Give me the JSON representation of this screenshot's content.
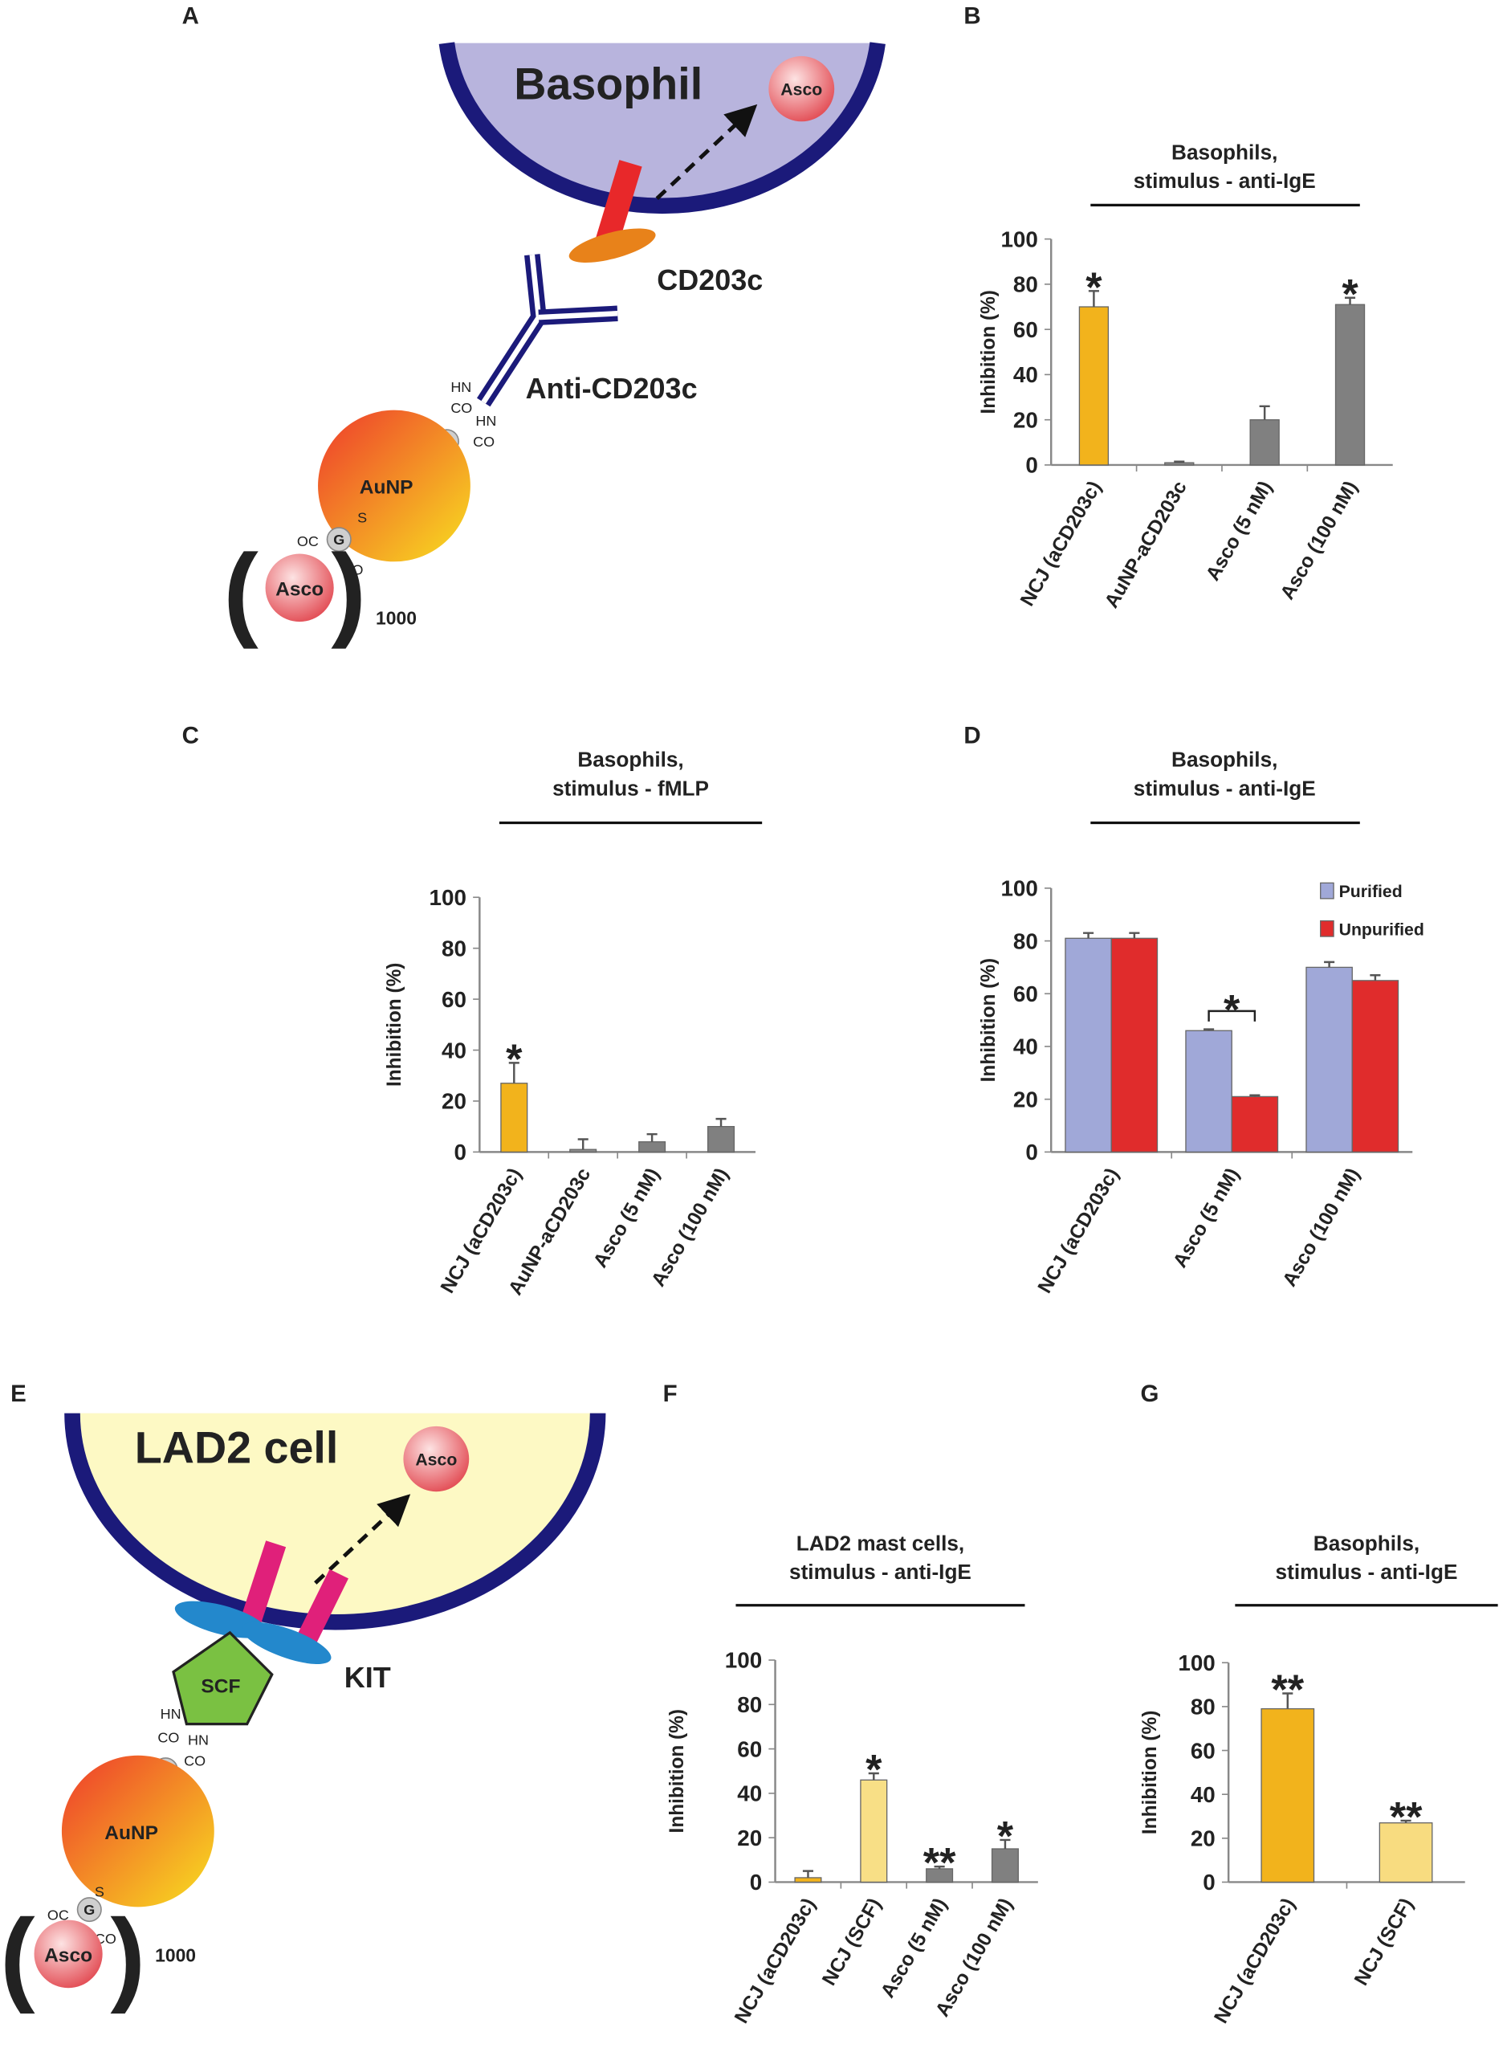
{
  "panels": {
    "a": "A",
    "e": "E"
  },
  "diagram_a": {
    "cell": "Basophil",
    "cargo": "Asco",
    "receptor": "CD203c",
    "ligand": "Anti-CD203c",
    "particle": "AuNP",
    "payload": "Asco",
    "count": "1000",
    "linker": "G",
    "chem_labels": [
      "HN",
      "CO",
      "HN",
      "CO",
      "S",
      "S",
      "OC",
      "CO"
    ]
  },
  "diagram_e": {
    "cell": "LAD2 cell",
    "cargo": "Asco",
    "receptor": "KIT",
    "ligand": "SCF",
    "particle": "AuNP",
    "payload": "Asco",
    "count": "1000",
    "linker": "G",
    "chem_labels": [
      "HN",
      "CO",
      "HN",
      "CO",
      "S",
      "S",
      "OC",
      "CO"
    ]
  },
  "chart_data": [
    {
      "type": "bar",
      "panel": "B",
      "title": "Basophils,",
      "subtitle": "stimulus - anti-IgE",
      "ylabel": "Inhibition (%)",
      "categories": [
        "NCJ (aCD203c)",
        "AuNP-aCD203c",
        "Asco (5 nM)",
        "Asco (100 nM)"
      ],
      "values": [
        70,
        1,
        20,
        71
      ],
      "errors": [
        7,
        0.5,
        6,
        3
      ],
      "colors": [
        "#f2b31c",
        "#8c8c8c",
        "#808080",
        "#808080"
      ],
      "annotations": [
        {
          "index": 0,
          "text": "*"
        },
        {
          "index": 3,
          "text": "*"
        }
      ],
      "ylim": [
        0,
        100
      ],
      "yticks": [
        0,
        20,
        40,
        60,
        80,
        100
      ]
    },
    {
      "type": "bar",
      "panel": "C",
      "title": "Basophils,",
      "subtitle": "stimulus - fMLP",
      "ylabel": "Inhibition (%)",
      "categories": [
        "NCJ (aCD203c)",
        "AuNP-aCD203c",
        "Asco (5 nM)",
        "Asco (100 nM)"
      ],
      "values": [
        27,
        1,
        4,
        10
      ],
      "errors": [
        8,
        4,
        3,
        3
      ],
      "colors": [
        "#f2b31c",
        "#8c8c8c",
        "#808080",
        "#808080"
      ],
      "annotations": [
        {
          "index": 0,
          "text": "*"
        }
      ],
      "ylim": [
        0,
        100
      ],
      "yticks": [
        0,
        20,
        40,
        60,
        80,
        100
      ]
    },
    {
      "type": "bar",
      "panel": "D",
      "title": "Basophils,",
      "subtitle": "stimulus - anti-IgE",
      "ylabel": "Inhibition (%)",
      "categories": [
        "NCJ (aCD203c)",
        "Asco (5 nM)",
        "Asco (100 nM)"
      ],
      "series": [
        {
          "name": "Purified",
          "color": "#a0a8d8",
          "values": [
            81,
            46,
            70
          ],
          "errors": [
            2,
            0.5,
            2
          ]
        },
        {
          "name": "Unpurified",
          "color": "#e02c2c",
          "values": [
            81,
            21,
            65
          ],
          "errors": [
            2,
            0.5,
            2
          ]
        }
      ],
      "annotations": [
        {
          "index": 1,
          "text": "*",
          "bracket": true
        }
      ],
      "legend": "top-right",
      "ylim": [
        0,
        100
      ],
      "yticks": [
        0,
        20,
        40,
        60,
        80,
        100
      ]
    },
    {
      "type": "bar",
      "panel": "F",
      "title": "LAD2 mast cells,",
      "subtitle": "stimulus - anti-IgE",
      "ylabel": "Inhibition (%)",
      "categories": [
        "NCJ (aCD203c)",
        "NCJ (SCF)",
        "Asco (5 nM)",
        "Asco (100 nM)"
      ],
      "values": [
        2,
        46,
        6,
        15
      ],
      "errors": [
        3,
        3,
        1,
        4
      ],
      "colors": [
        "#f2b31c",
        "#f8df86",
        "#808080",
        "#808080"
      ],
      "annotations": [
        {
          "index": 1,
          "text": "*"
        },
        {
          "index": 2,
          "text": "**"
        },
        {
          "index": 3,
          "text": "*"
        }
      ],
      "ylim": [
        0,
        100
      ],
      "yticks": [
        0,
        20,
        40,
        60,
        80,
        100
      ]
    },
    {
      "type": "bar",
      "panel": "G",
      "title": "Basophils,",
      "subtitle": "stimulus - anti-IgE",
      "ylabel": "Inhibition (%)",
      "categories": [
        "NCJ (aCD203c)",
        "NCJ (SCF)"
      ],
      "values": [
        79,
        27
      ],
      "errors": [
        7,
        1
      ],
      "colors": [
        "#f2b31c",
        "#f8dc80"
      ],
      "annotations": [
        {
          "index": 0,
          "text": "**"
        },
        {
          "index": 1,
          "text": "**"
        }
      ],
      "ylim": [
        0,
        100
      ],
      "yticks": [
        0,
        20,
        40,
        60,
        80,
        100
      ]
    }
  ]
}
